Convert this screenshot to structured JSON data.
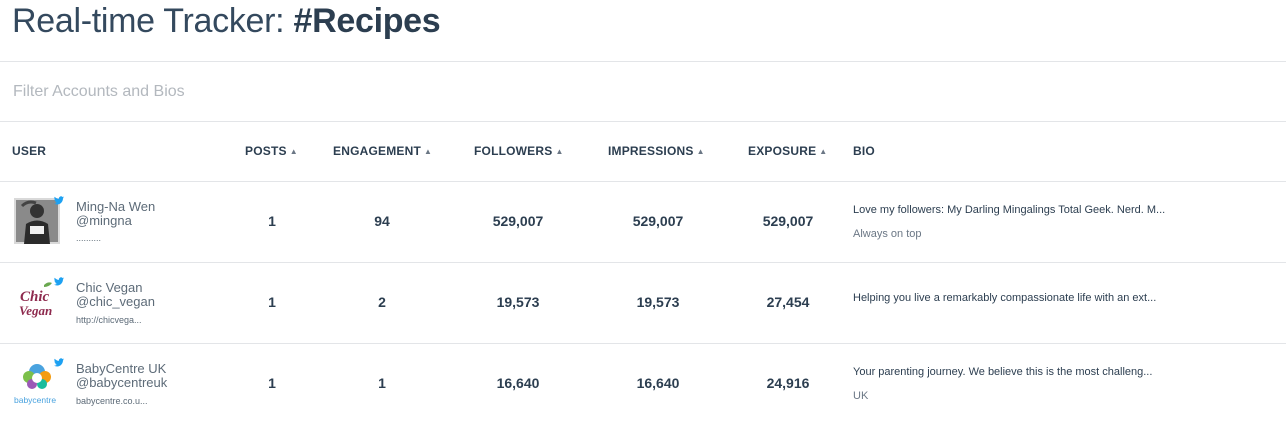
{
  "header": {
    "title_prefix": "Real-time Tracker: ",
    "hashtag": "#Recipes"
  },
  "filter": {
    "placeholder": "Filter Accounts and Bios",
    "value": ""
  },
  "table": {
    "columns": {
      "user": "USER",
      "posts": "POSTS",
      "engagement": "ENGAGEMENT",
      "followers": "FOLLOWERS",
      "impressions": "IMPRESSIONS",
      "exposure": "EXPOSURE",
      "bio": "BIO"
    },
    "sort_icon": "sort-arrows-icon",
    "rows": [
      {
        "name": "Ming-Na Wen",
        "handle": "@mingna",
        "link": "..........",
        "avatar_icon": "profile-photo",
        "posts": "1",
        "engagement": "94",
        "followers": "529,007",
        "impressions": "529,007",
        "exposure": "529,007",
        "bio": "Love my followers: My Darling Mingalings Total Geek. Nerd. M...",
        "bio_sub": "Always on top"
      },
      {
        "name": "Chic Vegan",
        "handle": "@chic_vegan",
        "link": "http://chicvega...",
        "avatar_icon": "chic-vegan-logo",
        "logo_text": [
          "Chic",
          "Vegan"
        ],
        "posts": "1",
        "engagement": "2",
        "followers": "19,573",
        "impressions": "19,573",
        "exposure": "27,454",
        "bio": "Helping you live a remarkably compassionate life with an ext...",
        "bio_sub": ""
      },
      {
        "name": "BabyCentre UK",
        "handle": "@babycentreuk",
        "link": "babycentre.co.u...",
        "avatar_icon": "babycentre-logo",
        "logo_text": "babycentre",
        "posts": "1",
        "engagement": "1",
        "followers": "16,640",
        "impressions": "16,640",
        "exposure": "24,916",
        "bio": "Your parenting journey. We believe this is the most challeng...",
        "bio_sub": "UK"
      }
    ]
  },
  "colors": {
    "heading": "#2c3e50",
    "muted": "#5d6b78",
    "twitter": "#1da1f2",
    "divider": "#e3e5e8"
  }
}
